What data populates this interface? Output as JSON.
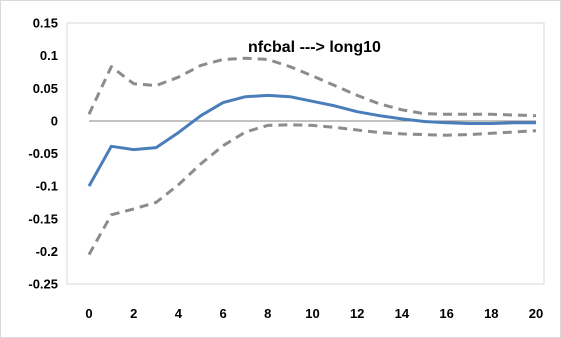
{
  "chart_data": {
    "type": "line",
    "title": "nfcbal ---> long10",
    "xlabel": "",
    "ylabel": "",
    "x": [
      0,
      1,
      2,
      3,
      4,
      5,
      6,
      7,
      8,
      9,
      10,
      11,
      12,
      13,
      14,
      15,
      16,
      17,
      18,
      19,
      20
    ],
    "xlim": [
      0,
      20
    ],
    "ylim": [
      -0.25,
      0.15
    ],
    "x_ticks": [
      "0",
      "2",
      "4",
      "6",
      "8",
      "10",
      "12",
      "14",
      "16",
      "18",
      "20"
    ],
    "y_ticks": [
      "0.15",
      "0.1",
      "0.05",
      "0",
      "-0.05",
      "-0.1",
      "-0.15",
      "-0.2",
      "-0.25"
    ],
    "grid": false,
    "legend": "none",
    "series": [
      {
        "style": "solid",
        "color": "#4a7ebb",
        "values": [
          -0.1,
          -0.039,
          -0.044,
          -0.041,
          -0.018,
          0.008,
          0.028,
          0.037,
          0.039,
          0.037,
          0.03,
          0.023,
          0.014,
          0.008,
          0.003,
          -0.001,
          -0.003,
          -0.004,
          -0.004,
          -0.003,
          -0.003
        ]
      },
      {
        "style": "dashed",
        "color": "#8c8c8c",
        "values": [
          0.01,
          0.083,
          0.057,
          0.054,
          0.067,
          0.085,
          0.094,
          0.096,
          0.094,
          0.083,
          0.069,
          0.054,
          0.039,
          0.026,
          0.017,
          0.011,
          0.01,
          0.01,
          0.01,
          0.009,
          0.008
        ]
      },
      {
        "style": "dashed",
        "color": "#8c8c8c",
        "values": [
          -0.205,
          -0.144,
          -0.135,
          -0.125,
          -0.098,
          -0.066,
          -0.038,
          -0.017,
          -0.007,
          -0.006,
          -0.007,
          -0.01,
          -0.014,
          -0.018,
          -0.02,
          -0.021,
          -0.022,
          -0.021,
          -0.019,
          -0.017,
          -0.015
        ]
      }
    ]
  }
}
